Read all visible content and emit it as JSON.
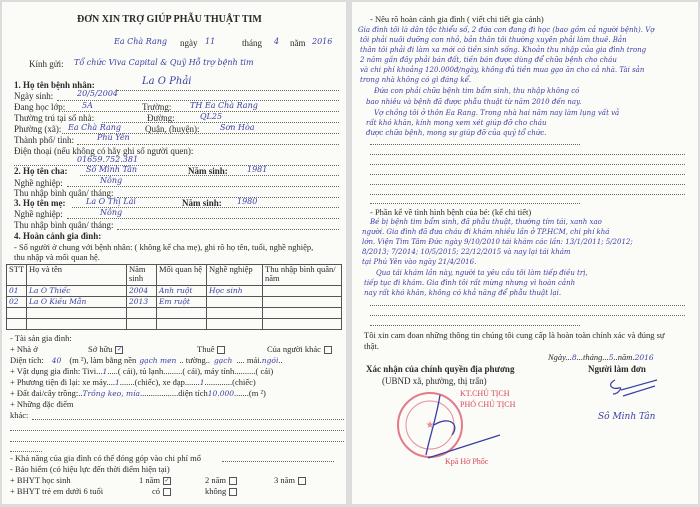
{
  "left_page": {
    "title": "ĐƠN XIN TRỢ GIÚP PHẪU THUẬT TIM",
    "date": {
      "place": "Ea Chà Rang",
      "ngay_label": "ngày",
      "day": "11",
      "thang_label": "tháng",
      "month": "4",
      "nam_label": "năm",
      "year": "2016"
    },
    "kinh_gui": {
      "label": "Kính gửi:",
      "value": "Tổ chức Viva Capital & Quỹ Hỗ trợ bệnh tim"
    },
    "patient": {
      "label": "1. Họ tên bệnh nhân:",
      "name": "La O Phải",
      "dob_label": "Ngày sinh:",
      "dob": "20/5/2004",
      "class_label": "Đang học lớp:",
      "class": "5A",
      "school_label": "Trường:",
      "school": "TH Ea Chà Rang",
      "address_label": "Thường trú tại số nhà:",
      "street_label": "Đường:",
      "street": "QL25",
      "ward_label": "Phường (xã):",
      "ward": "Ea Chà Rang",
      "district_label": "Quận, (huyện):",
      "district": "Sơn Hòa",
      "city_label": "Thành phố/ tỉnh:",
      "city": "Phú Yên",
      "phone_label": "Điện thoại (nếu không có hãy ghi số người quen):",
      "phone": "01659.752.381"
    },
    "father": {
      "label": "2. Họ tên cha:",
      "name": "Sô Minh Tân",
      "birth_label": "Năm sinh:",
      "birth": "1981",
      "job_label": "Nghề nghiệp:",
      "job": "Nông",
      "income_label": "Thu nhập bình quân/ tháng:"
    },
    "mother": {
      "label": "3. Họ tên mẹ:",
      "name": "La O Thị Lài",
      "birth_label": "Năm sinh:",
      "birth": "1980",
      "job_label": "Nghề nghiệp:",
      "job": "Nông",
      "income_label": "Thu nhập bình quân/ tháng:"
    },
    "family": {
      "label": "4. Hoàn cảnh gia đình:",
      "desc1": "- Số người ở chung với bệnh nhân: ( không kể cha mẹ), ghi rõ họ tên, tuổi, nghề nghiệp,",
      "desc2": "thu nhập và mối quan hệ.",
      "columns": [
        "STT",
        "Họ và tên",
        "Năm sinh",
        "Mối quan hệ",
        "Nghề nghiệp",
        "Thu nhập bình quân/ năm"
      ],
      "rows": [
        [
          "01",
          "La O Thiếc",
          "2004",
          "Anh ruột",
          "Học sinh",
          ""
        ],
        [
          "02",
          "La O Kiều Mẫn",
          "2013",
          "Em ruột",
          "",
          ""
        ]
      ]
    },
    "assets": {
      "label": "- Tài sản gia đình:",
      "house_label": "+ Nhà ở",
      "own": "Sở hữu",
      "own_checked": true,
      "rent": "Thuê",
      "rent_checked": false,
      "other": "Của người khác",
      "other_checked": false,
      "area_label": "Diện tích:",
      "area": "40",
      "area_unit": "(m ²), làm bằng nền",
      "floor": "gạch men",
      "wall_label": "tường",
      "wall": "gạch",
      "roof_label": "mái",
      "roof": "ngói",
      "items_label": "+ Vật dụng gia đình: Tivi",
      "tv": "1",
      "unit_cai": "( cái), tủ lạnh",
      "fridge_unit": "( cái), máy tính",
      "pc_unit": "( cái)",
      "vehicle_label": "+ Phương tiện đi lại: xe máy",
      "moto": "1",
      "moto_unit": "(chiếc), xe đạp",
      "bike": "1",
      "bike_unit": "(chiếc)",
      "land_label": "+ Đất đai/cây trồng:",
      "land": "Trồng keo, mía",
      "land_area_label": "diện tích",
      "land_area": "10.000",
      "land_unit": "(m ²)",
      "other_label": "+ Những đặc điểm",
      "other_label2": "khác:",
      "contribution": "- Khả năng của gia đình có thể đóng góp vào chi phí mổ",
      "insurance": "- Bảo hiểm (có hiệu lực đến thời điểm hiện tại)",
      "bhyt_student": "+ BHYT học sinh",
      "y1": "1 năm",
      "y2": "2 năm",
      "y3": "3 năm",
      "bhyt_child": "+ BHYT trẻ em dưới 6 tuổi",
      "yes": "có",
      "no": "không"
    }
  },
  "right_page": {
    "situation_label": "- Nêu rõ hoàn cảnh gia đình ( viết chi tiết gia cảnh)",
    "situation_lines": [
      "Gia đình tôi là dân tộc thiểu số, 2 đứa con đang đi học (bao gồm cả người bệnh). Vợ",
      "tôi phải nuôi dưỡng con nhỏ, bản thân tôi thường xuyên phải làm thuê. Bản",
      "thân tôi phải đi làm xa mới có tiền sinh sống. Khoản thu nhập của gia đình trong",
      "2 năm gần đây phải bán đất, tiền bán được dùng để chữa bệnh cho cháu",
      "và chi phí khoảng 120.000đ/ngày, không đủ tiền mua gạo ăn cho cả nhà. Tài sản",
      "trong nhà không có gì đáng kể.",
      "Đứa con phải chữa bệnh tim bẩm sinh, thu nhập không có",
      "bao nhiêu và bệnh đã được phẫu thuật từ năm 2010 đến nay.",
      "Vợ chồng tôi ở thôn Ea Rang. Trong nhà hai năm nay làm lụng vất vả",
      "rất khó khăn, kính mong xem xét giúp đỡ cho cháu",
      "được chữa bệnh, mong sự giúp đỡ của quý tổ chức."
    ],
    "disease_label": "- Phần kể về tình hình bệnh của bé: (kể chi  tiết)",
    "disease_lines": [
      "Bé bị bệnh tim bẩm sinh, đã phẫu thuật, thường tím tái, xanh xao",
      "người. Gia đình đã đưa cháu đi khám nhiều lần ở TP.HCM, chi phí khá",
      "lớn. Viện Tim Tâm Đức ngày 9/10/2010 tái khám các lần: 13/1/2011; 5/2012;",
      "8/2013; 7/2014; 10/5/2015; 22/12/2015 và nay lại tái khám",
      "tại Phú Yên vào ngày 21/4/2016.",
      "Qua tái khám lần này, người ta yêu cầu tôi làm tiếp điều trị,",
      "tiếp tục đi khám. Gia đình tôi rất mừng nhưng vì hoàn cảnh",
      "nay rất khó khăn, không có khả năng để phẫu thuật lại."
    ],
    "pledge1": "Tôi xin cam đoan những thông tin chúng tôi cung cấp là hoàn toàn chính xác và đúng sự",
    "pledge2": "thật.",
    "sign_date": {
      "ngay_label": "Ngày",
      "day": "8",
      "thang_label": "tháng",
      "month": "5",
      "nam_label": "năm",
      "year": "2016"
    },
    "authority_label": "Xác nhận của chính quyền địa phương",
    "authority_sub": "(UBND xã, phường, thị trấn)",
    "stamp_title1": "KT.CHỦ TỊCH",
    "stamp_title2": "PHÓ CHỦ TỊCH",
    "stamp_name": "Kpă Hờ Phốc",
    "applicant_label": "Người làm đơn",
    "applicant_name": "Sô Minh Tân"
  },
  "colors": {
    "ink": "#3a3fa6",
    "stamp": "#d9455a"
  }
}
